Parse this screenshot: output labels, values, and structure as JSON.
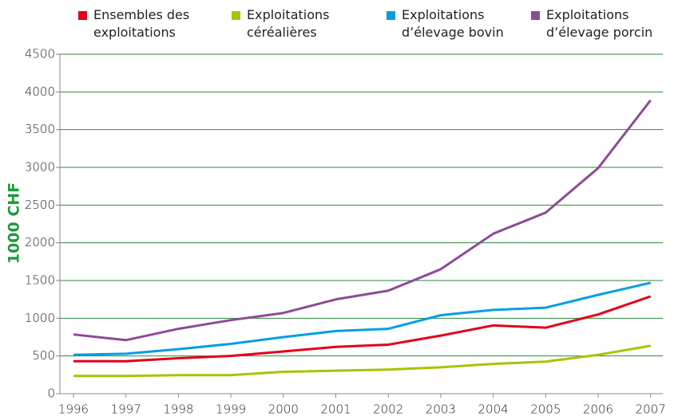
{
  "chart_data": {
    "type": "line",
    "y_label": "1000 CHF",
    "categories": [
      "1996",
      "1997",
      "1998",
      "1999",
      "2000",
      "2001",
      "2002",
      "2003",
      "2004",
      "2005",
      "2006",
      "2007"
    ],
    "series": [
      {
        "name": "Ensembles des exploitations",
        "color": "#e2001a",
        "values": [
          430,
          430,
          470,
          500,
          560,
          620,
          650,
          770,
          905,
          875,
          1050,
          1290
        ]
      },
      {
        "name": "Exploitations céréalières",
        "color": "#a8c400",
        "values": [
          235,
          235,
          245,
          245,
          290,
          305,
          320,
          350,
          395,
          425,
          515,
          635
        ]
      },
      {
        "name": "Exploitations d’élevage bovin",
        "color": "#009fe3",
        "values": [
          515,
          530,
          590,
          660,
          750,
          830,
          860,
          1040,
          1110,
          1140,
          1310,
          1470
        ]
      },
      {
        "name": "Exploitations d’élevage porcin",
        "color": "#8e4a97",
        "values": [
          785,
          710,
          860,
          975,
          1070,
          1250,
          1365,
          1650,
          2120,
          2400,
          2990,
          3890
        ]
      }
    ],
    "ylim": [
      0,
      4500
    ],
    "yticks": [
      0,
      500,
      1000,
      1500,
      2000,
      2500,
      3000,
      3500,
      4000,
      4500
    ],
    "grid": true,
    "grid_color": "#2a8a3c",
    "y_label_color": "#1e9a3a"
  }
}
